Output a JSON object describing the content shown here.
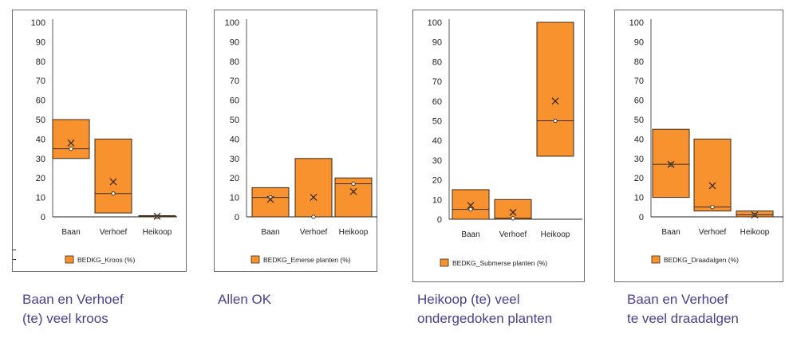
{
  "charts": [
    {
      "caption": [
        "Baan en Verhoef",
        "(te) veel kroos"
      ],
      "chart_data": {
        "type": "box",
        "y_ticks": [
          "0",
          "10",
          "20",
          "30",
          "40",
          "50",
          "60",
          "70",
          "80",
          "90",
          "100"
        ],
        "ylim": [
          0,
          100
        ],
        "categories": [
          "Baan",
          "Verhoef",
          "Heikoop"
        ],
        "series": [
          {
            "name": "BEDKG_Kroos (%)",
            "boxes": [
              {
                "q1": 30,
                "q3": 50,
                "median": 35,
                "mean": 38,
                "marker": 35
              },
              {
                "q1": 2,
                "q3": 40,
                "median": 12,
                "mean": 18,
                "marker": 12
              },
              {
                "q1": 0,
                "q3": 0.6,
                "median": 0.3,
                "mean": 0.3,
                "marker": 0
              }
            ]
          }
        ],
        "legend_label": "BEDKG_Kroos (%)"
      }
    },
    {
      "caption": [
        "Allen OK"
      ],
      "chart_data": {
        "type": "box",
        "y_ticks": [
          "0",
          "10",
          "20",
          "30",
          "40",
          "50",
          "60",
          "70",
          "80",
          "90",
          "100"
        ],
        "ylim": [
          0,
          100
        ],
        "categories": [
          "Baan",
          "Verhoef",
          "Heikoop"
        ],
        "series": [
          {
            "name": "BEDKG_Emerse planten (%)",
            "boxes": [
              {
                "q1": 0,
                "q3": 15,
                "median": 10,
                "mean": 9,
                "marker": 10
              },
              {
                "q1": 0,
                "q3": 30,
                "median": 0,
                "mean": 10,
                "marker": 0
              },
              {
                "q1": 0,
                "q3": 20,
                "median": 17,
                "mean": 13,
                "marker": 17
              }
            ]
          }
        ],
        "legend_label": "BEDKG_Emerse planten (%)"
      }
    },
    {
      "caption": [
        "Heikoop (te) veel",
        "ondergedoken planten"
      ],
      "chart_data": {
        "type": "box",
        "y_ticks": [
          "0",
          "10",
          "20",
          "30",
          "40",
          "50",
          "60",
          "70",
          "80",
          "90",
          "100"
        ],
        "ylim": [
          0,
          100
        ],
        "categories": [
          "Baan",
          "Verhoef",
          "Heikoop"
        ],
        "series": [
          {
            "name": "BEDKG_Submerse planten (%)",
            "boxes": [
              {
                "q1": 0,
                "q3": 15,
                "median": 5,
                "mean": 7,
                "marker": 5
              },
              {
                "q1": 0,
                "q3": 10,
                "median": 0.5,
                "mean": 3.5,
                "marker": 0.5
              },
              {
                "q1": 32,
                "q3": 100,
                "median": 50,
                "mean": 60,
                "marker": 50
              }
            ]
          }
        ],
        "legend_label": "BEDKG_Submerse planten (%)"
      }
    },
    {
      "caption": [
        "Baan en Verhoef",
        "te veel draadalgen"
      ],
      "chart_data": {
        "type": "box",
        "y_ticks": [
          "0",
          "10",
          "20",
          "30",
          "40",
          "50",
          "60",
          "70",
          "80",
          "90",
          "100"
        ],
        "ylim": [
          0,
          100
        ],
        "categories": [
          "Baan",
          "Verhoef",
          "Heikoop"
        ],
        "series": [
          {
            "name": "BEDKG_Draadalgen (%)",
            "boxes": [
              {
                "q1": 10,
                "q3": 45,
                "median": 27,
                "mean": 27,
                "marker": 27
              },
              {
                "q1": 3,
                "q3": 40,
                "median": 5,
                "mean": 16,
                "marker": 5
              },
              {
                "q1": 0,
                "q3": 3,
                "median": 1,
                "mean": 1,
                "marker": 1
              }
            ]
          }
        ],
        "legend_label": "BEDKG_Draadalgen (%)"
      }
    }
  ],
  "colors": {
    "box_fill": "#f7922e",
    "box_stroke": "#3a2a1a",
    "caption": "#4b3f8f"
  }
}
